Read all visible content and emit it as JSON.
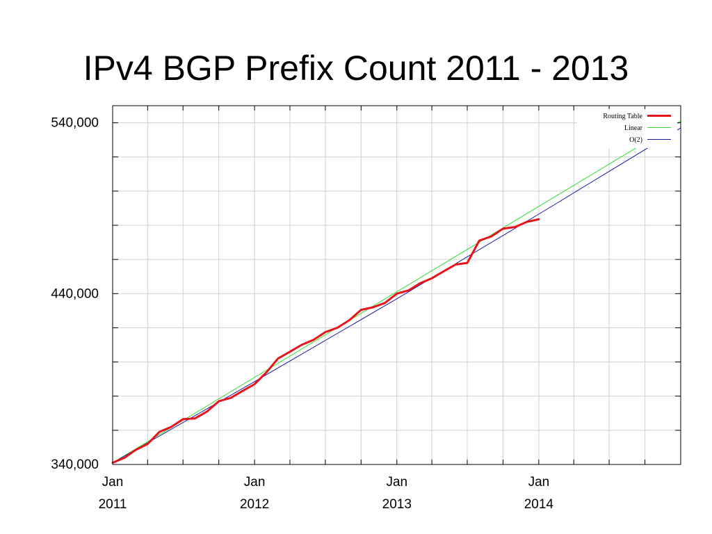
{
  "slide": {
    "title": "IPv4 BGP Prefix Count 2011 - 2013"
  },
  "chart_data": {
    "type": "line",
    "title": "IPv4 BGP Prefix Count 2011 - 2013",
    "xlabel": "",
    "ylabel": "",
    "x_is_date": true,
    "xlim": [
      "2011-01-01",
      "2015-01-01"
    ],
    "ylim": [
      340000,
      550000
    ],
    "grid": true,
    "legend_position": "top-right",
    "y_ticks": [
      {
        "value": 340000,
        "label": "340,000"
      },
      {
        "value": 440000,
        "label": "440,000"
      },
      {
        "value": 540000,
        "label": "540,000"
      }
    ],
    "x_ticks": [
      {
        "date": "2011-01-01",
        "line1": "Jan",
        "line2": "2011"
      },
      {
        "date": "2012-01-01",
        "line1": "Jan",
        "line2": "2012"
      },
      {
        "date": "2013-01-01",
        "line1": "Jan",
        "line2": "2013"
      },
      {
        "date": "2014-01-01",
        "line1": "Jan",
        "line2": "2014"
      }
    ],
    "series": [
      {
        "name": "Routing Table",
        "color": "#e8141b",
        "style": "thick",
        "points": [
          [
            "2011-01-01",
            341000
          ],
          [
            "2011-02-01",
            344000
          ],
          [
            "2011-03-01",
            348500
          ],
          [
            "2011-04-01",
            352000
          ],
          [
            "2011-05-01",
            359000
          ],
          [
            "2011-06-01",
            362000
          ],
          [
            "2011-07-01",
            366500
          ],
          [
            "2011-08-01",
            367000
          ],
          [
            "2011-09-01",
            371000
          ],
          [
            "2011-10-01",
            377000
          ],
          [
            "2011-11-01",
            379000
          ],
          [
            "2011-12-01",
            383000
          ],
          [
            "2012-01-01",
            387000
          ],
          [
            "2012-02-01",
            394000
          ],
          [
            "2012-03-01",
            402000
          ],
          [
            "2012-04-01",
            406000
          ],
          [
            "2012-05-01",
            410000
          ],
          [
            "2012-06-01",
            413000
          ],
          [
            "2012-07-01",
            417500
          ],
          [
            "2012-08-01",
            420000
          ],
          [
            "2012-09-01",
            424500
          ],
          [
            "2012-10-01",
            430500
          ],
          [
            "2012-11-01",
            432000
          ],
          [
            "2012-12-01",
            434500
          ],
          [
            "2013-01-01",
            440000
          ],
          [
            "2013-02-01",
            442000
          ],
          [
            "2013-03-01",
            446000
          ],
          [
            "2013-04-01",
            449000
          ],
          [
            "2013-05-01",
            453000
          ],
          [
            "2013-06-01",
            457000
          ],
          [
            "2013-07-01",
            458000
          ],
          [
            "2013-08-01",
            471000
          ],
          [
            "2013-09-01",
            473500
          ],
          [
            "2013-10-01",
            478000
          ],
          [
            "2013-11-01",
            479000
          ],
          [
            "2013-12-01",
            482000
          ],
          [
            "2014-01-01",
            483500
          ]
        ]
      },
      {
        "name": "Linear",
        "color": "#33dd33",
        "style": "thin",
        "points": [
          [
            "2011-01-01",
            341000
          ],
          [
            "2015-01-01",
            541000
          ]
        ]
      },
      {
        "name": "O(2)",
        "color": "#1a1aa8",
        "style": "thin",
        "points": [
          [
            "2011-01-01",
            341000
          ],
          [
            "2012-01-01",
            388500
          ],
          [
            "2013-01-01",
            437000
          ],
          [
            "2014-01-01",
            486500
          ],
          [
            "2015-01-01",
            537000
          ]
        ]
      }
    ]
  }
}
